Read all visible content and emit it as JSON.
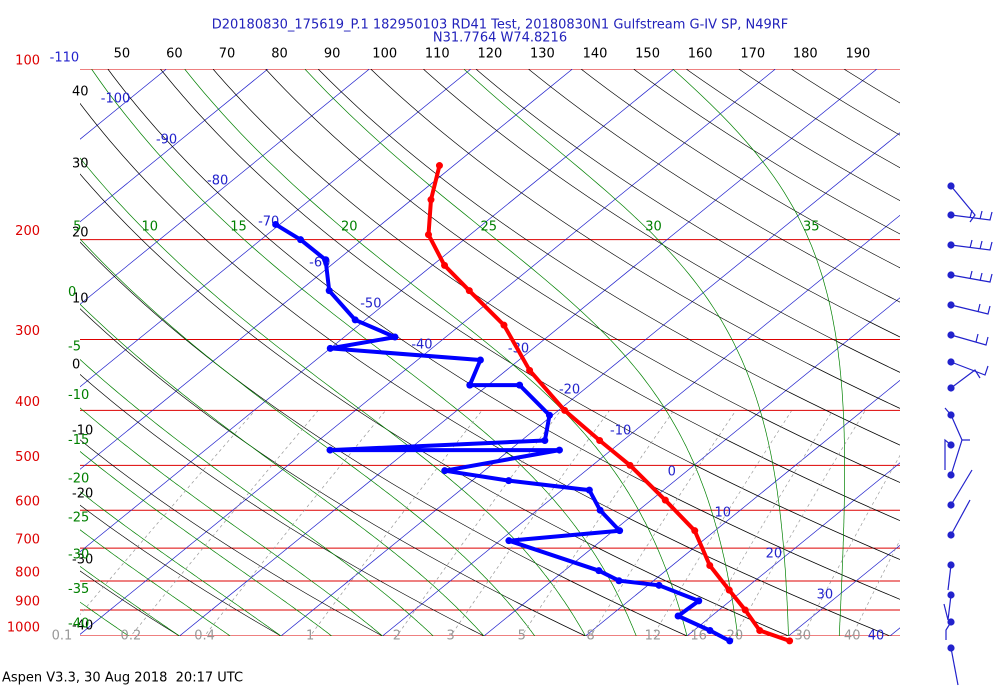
{
  "chart_data": {
    "type": "skewt",
    "title": "D20180830_175619_P.1 182950103 RD41 Test, 20180830N1 Gulfstream G-IV SP, N49RF",
    "subtitle": "N31.7764 W74.8216",
    "footer": "Aspen V3.3, 30 Aug 2018  20:17 UTC",
    "ylim": [
      1000,
      100
    ],
    "log_y": true,
    "yticks": [
      100,
      200,
      300,
      400,
      500,
      600,
      700,
      800,
      900,
      1000
    ],
    "isotherms": [
      -110,
      -100,
      -90,
      -80,
      -70,
      -60,
      -50,
      -40,
      -30,
      -20,
      -10,
      0,
      10,
      20,
      30,
      40
    ],
    "dry_adiabats_left": [
      40,
      30,
      20,
      10,
      0,
      -10,
      -20,
      -30,
      -40
    ],
    "dry_adiabats_top": [
      50,
      60,
      70,
      80,
      90,
      100,
      110,
      120,
      130,
      140,
      150,
      160,
      170,
      180,
      190
    ],
    "moist_adiabats_top": [
      5,
      10,
      15,
      20,
      25,
      30,
      35
    ],
    "moist_adiabats_left": [
      0,
      -5,
      -10,
      -15,
      -20,
      -25,
      -30,
      -35,
      -40
    ],
    "mixing_ratios": [
      0.1,
      0.2,
      0.4,
      1,
      2,
      3,
      5,
      8,
      12,
      16,
      20,
      30,
      40
    ],
    "colors": {
      "grid": "#dd0000",
      "isotherm": "#2222cc",
      "dry": "#000000",
      "moist": "#008000",
      "mixing": "#999999"
    },
    "series": [
      {
        "name": "Temperature",
        "color": "#ff0000",
        "pressure": [
          148,
          170,
          196,
          222,
          246,
          283,
          340,
          400,
          452,
          500,
          576,
          652,
          751,
          830,
          900,
          978,
          1020
        ],
        "values": [
          -61.4,
          -58.1,
          -54.1,
          -48.8,
          -43.3,
          -35.7,
          -27.7,
          -19.4,
          -12.3,
          -6.3,
          1.4,
          8.0,
          13.7,
          18.6,
          22.6,
          26.5,
          30.7
        ]
      },
      {
        "name": "Dewpoint",
        "color": "#0000ff",
        "pressure": [
          188,
          200,
          217,
          246,
          277,
          297,
          311,
          326,
          361,
          361,
          408,
          452,
          470,
          470,
          511,
          532,
          553,
          600,
          652,
          679,
          767,
          799,
          814,
          867,
          922,
          978,
          1020
        ],
        "values": [
          -70.4,
          -66.1,
          -61.2,
          -57.1,
          -51.0,
          -45.0,
          -50.0,
          -33.8,
          -31.8,
          -26.9,
          -20.3,
          -17.7,
          -37.7,
          -15.1,
          -23.9,
          -16.4,
          -7.3,
          -3.8,
          0.6,
          -9.1,
          3.4,
          6.6,
          11.1,
          16.9,
          16.7,
          21.6,
          24.8
        ]
      }
    ]
  }
}
